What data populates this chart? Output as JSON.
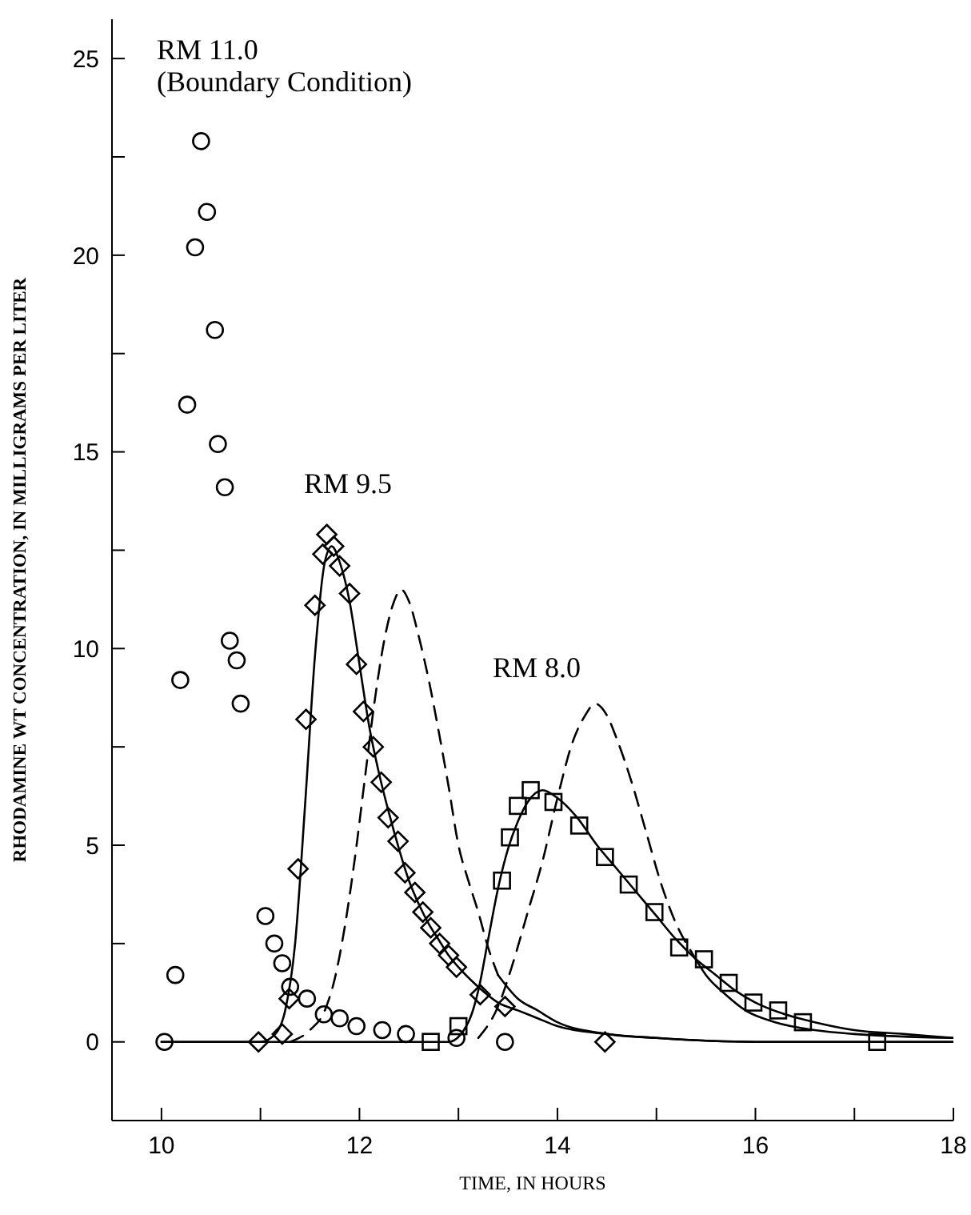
{
  "chart_data": {
    "type": "scatter",
    "xlabel": "TIME, IN HOURS",
    "ylabel": "RHODAMINE WT CONCENTRATION, IN MILLIGRAMS PER LITER",
    "xlim": [
      9.5,
      18
    ],
    "ylim": [
      -2,
      26
    ],
    "xticks": [
      10,
      {
        "value": 11,
        "label": null
      },
      12,
      {
        "value": 13,
        "label": null
      },
      14,
      {
        "value": 15,
        "label": null
      },
      16,
      {
        "value": 17,
        "label": null
      },
      18
    ],
    "yticks": [
      0,
      {
        "value": 2.5,
        "label": null
      },
      5,
      {
        "value": 7.5,
        "label": null
      },
      10,
      {
        "value": 12.5,
        "label": null
      },
      15,
      {
        "value": 17.5,
        "label": null
      },
      20,
      {
        "value": 22.5,
        "label": null
      },
      25
    ],
    "annotations": [
      "RM 11.0\n(Boundary Condition)",
      "RM 9.5",
      "RM 8.0"
    ],
    "series": [
      {
        "type": "scatter",
        "marker": "circle",
        "color": "#000000",
        "x": [
          10.03,
          10.14,
          10.19,
          10.26,
          10.34,
          10.4,
          10.46,
          10.54,
          10.57,
          10.64,
          10.69,
          10.76,
          10.8,
          11.05,
          11.14,
          11.22,
          11.3,
          11.47,
          11.64,
          11.8,
          11.97,
          12.23,
          12.47,
          12.98,
          13.47
        ],
        "values": [
          0,
          1.7,
          9.2,
          16.2,
          20.2,
          22.9,
          21.1,
          18.1,
          15.2,
          14.1,
          10.2,
          9.7,
          8.6,
          3.2,
          2.5,
          2.0,
          1.4,
          1.1,
          0.7,
          0.6,
          0.4,
          0.3,
          0.2,
          0.1,
          0
        ]
      },
      {
        "type": "scatter",
        "marker": "diamond",
        "color": "#000000",
        "x": [
          10.98,
          11.22,
          11.29,
          11.38,
          11.46,
          11.55,
          11.63,
          11.67,
          11.74,
          11.8,
          11.9,
          11.97,
          12.04,
          12.14,
          12.22,
          12.29,
          12.39,
          12.46,
          12.56,
          12.64,
          12.72,
          12.81,
          12.9,
          12.98,
          13.22,
          13.47,
          14.48
        ],
        "values": [
          0,
          0.2,
          1.1,
          4.4,
          8.2,
          11.1,
          12.4,
          12.9,
          12.6,
          12.1,
          11.4,
          9.6,
          8.4,
          7.5,
          6.6,
          5.7,
          5.1,
          4.3,
          3.8,
          3.3,
          2.9,
          2.5,
          2.2,
          1.9,
          1.2,
          0.9,
          0
        ]
      },
      {
        "type": "scatter",
        "marker": "square",
        "color": "#000000",
        "x": [
          12.72,
          13.0,
          13.44,
          13.52,
          13.6,
          13.73,
          13.96,
          14.22,
          14.48,
          14.72,
          14.98,
          15.23,
          15.48,
          15.73,
          15.98,
          16.23,
          16.48,
          17.23
        ],
        "values": [
          0,
          0.4,
          4.1,
          5.2,
          6.0,
          6.4,
          6.1,
          5.5,
          4.7,
          4.0,
          3.3,
          2.4,
          2.1,
          1.5,
          1.0,
          0.8,
          0.5,
          0
        ]
      },
      {
        "type": "line",
        "marker": "none",
        "line_style": "solid",
        "color": "#000000",
        "x": [
          10.0,
          11.0,
          11.15,
          11.25,
          11.35,
          11.45,
          11.55,
          11.65,
          11.72,
          11.8,
          11.9,
          12.0,
          12.1,
          12.2,
          12.3,
          12.4,
          12.5,
          12.6,
          12.7,
          12.8,
          12.9,
          13.0,
          13.2,
          13.4,
          13.6,
          13.8,
          14.0,
          14.5,
          15.0,
          16.0,
          18.0
        ],
        "values": [
          0,
          0,
          0.2,
          0.8,
          2.5,
          6.0,
          9.8,
          12.2,
          12.6,
          12.2,
          11.2,
          9.6,
          8.0,
          6.8,
          5.8,
          4.9,
          4.1,
          3.5,
          3.0,
          2.6,
          2.2,
          1.9,
          1.4,
          1.0,
          0.8,
          0.6,
          0.4,
          0.2,
          0.1,
          0,
          0
        ]
      },
      {
        "type": "line",
        "marker": "none",
        "line_style": "solid",
        "color": "#000000",
        "x": [
          10.0,
          12.9,
          13.1,
          13.2,
          13.3,
          13.4,
          13.5,
          13.6,
          13.7,
          13.85,
          14.0,
          14.2,
          14.4,
          14.6,
          14.8,
          15.0,
          15.2,
          15.4,
          15.6,
          15.8,
          16.0,
          16.3,
          16.6,
          17.0,
          17.5,
          18.0
        ],
        "values": [
          0,
          0,
          0.5,
          1.3,
          2.6,
          3.9,
          4.9,
          5.6,
          6.1,
          6.4,
          6.2,
          5.7,
          5.0,
          4.4,
          3.8,
          3.2,
          2.6,
          2.1,
          1.7,
          1.3,
          1.0,
          0.7,
          0.5,
          0.3,
          0.2,
          0.1
        ]
      },
      {
        "type": "line",
        "marker": "none",
        "line_style": "dashed",
        "color": "#000000",
        "x": [
          11.3,
          11.5,
          11.65,
          11.75,
          11.85,
          11.95,
          12.05,
          12.15,
          12.25,
          12.35,
          12.42,
          12.5,
          12.6,
          12.7,
          12.8,
          12.9,
          13.0,
          13.1,
          13.2,
          13.3,
          13.4
        ],
        "values": [
          0,
          0.3,
          0.8,
          1.6,
          2.9,
          4.6,
          6.6,
          8.6,
          10.2,
          11.2,
          11.5,
          11.2,
          10.3,
          9.2,
          7.9,
          6.5,
          5.0,
          4.1,
          3.3,
          2.4,
          1.7
        ]
      },
      {
        "type": "line",
        "marker": "none",
        "line_style": "solid",
        "color": "#000000",
        "x": [
          13.4,
          13.6,
          13.8,
          14.0,
          14.5,
          15.0,
          16.0,
          18.0
        ],
        "values": [
          1.7,
          1.1,
          0.8,
          0.5,
          0.2,
          0.1,
          0,
          0
        ]
      },
      {
        "type": "line",
        "marker": "none",
        "line_style": "dashed",
        "color": "#000000",
        "x": [
          13.2,
          13.4,
          13.55,
          13.7,
          13.85,
          14.0,
          14.15,
          14.28,
          14.38,
          14.5,
          14.6,
          14.75,
          14.9,
          15.05,
          15.2,
          15.35
        ],
        "values": [
          0.1,
          0.9,
          2.0,
          3.3,
          4.6,
          6.2,
          7.6,
          8.3,
          8.6,
          8.3,
          7.7,
          6.6,
          5.3,
          4.0,
          3.0,
          2.3
        ]
      },
      {
        "type": "line",
        "marker": "none",
        "line_style": "solid",
        "color": "#000000",
        "x": [
          15.35,
          15.5,
          15.7,
          15.9,
          16.2,
          16.6,
          17.0,
          18.0
        ],
        "values": [
          2.3,
          1.7,
          1.2,
          0.8,
          0.5,
          0.3,
          0.2,
          0.1
        ]
      }
    ]
  }
}
